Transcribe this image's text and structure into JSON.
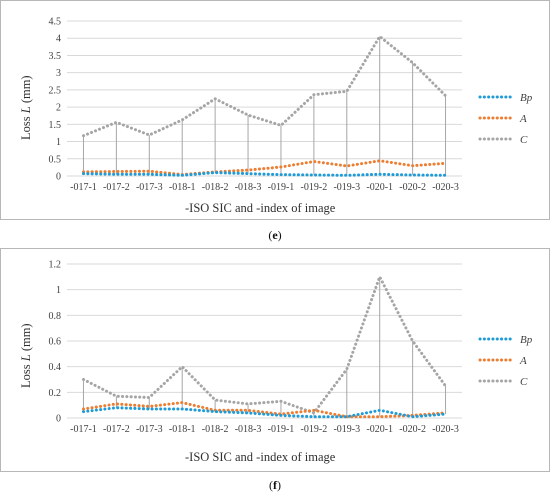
{
  "chart_data": [
    {
      "type": "line",
      "panel_label": "e",
      "categories": [
        "-017-1",
        "-017-2",
        "-017-3",
        "-018-1",
        "-018-2",
        "-018-3",
        "-019-1",
        "-019-2",
        "-019-3",
        "-020-1",
        "-020-2",
        "-020-3"
      ],
      "series": [
        {
          "name": "Bp",
          "color": "#1f9bd7",
          "values": [
            0.07,
            0.05,
            0.05,
            0.02,
            0.1,
            0.07,
            0.04,
            0.03,
            0.02,
            0.05,
            0.03,
            0.02
          ]
        },
        {
          "name": "A",
          "color": "#ed7d31",
          "values": [
            0.12,
            0.13,
            0.14,
            0.04,
            0.12,
            0.17,
            0.26,
            0.42,
            0.29,
            0.44,
            0.3,
            0.37
          ]
        },
        {
          "name": "C",
          "color": "#a5a5a5",
          "values": [
            1.17,
            1.56,
            1.19,
            1.63,
            2.24,
            1.77,
            1.47,
            2.36,
            2.46,
            4.05,
            3.29,
            2.33
          ]
        }
      ],
      "drop_lines": true,
      "xlabel": "-ISO SIC and -index of image",
      "ylabel_main": "Loss ",
      "ylabel_var": "L",
      "ylabel_unit": " (mm)",
      "ylim": [
        0,
        4.5
      ],
      "yticks": [
        "0",
        "0.5",
        "1",
        "1.5",
        "2",
        "2.5",
        "3",
        "3.5",
        "4",
        "4.5"
      ],
      "grid": true,
      "legend_position": "right"
    },
    {
      "type": "line",
      "panel_label": "f",
      "categories": [
        "-017-1",
        "-017-2",
        "-017-3",
        "-018-1",
        "-018-2",
        "-018-3",
        "-019-1",
        "-019-2",
        "-019-3",
        "-020-1",
        "-020-2",
        "-020-3"
      ],
      "series": [
        {
          "name": "Bp",
          "color": "#1f9bd7",
          "values": [
            0.05,
            0.08,
            0.07,
            0.07,
            0.05,
            0.04,
            0.02,
            0.01,
            0.01,
            0.06,
            0.01,
            0.03
          ]
        },
        {
          "name": "A",
          "color": "#ed7d31",
          "values": [
            0.07,
            0.11,
            0.09,
            0.12,
            0.06,
            0.06,
            0.03,
            0.06,
            0.01,
            0.01,
            0.02,
            0.04
          ]
        },
        {
          "name": "C",
          "color": "#a5a5a5",
          "values": [
            0.3,
            0.17,
            0.16,
            0.4,
            0.14,
            0.11,
            0.13,
            0.04,
            0.38,
            1.1,
            0.6,
            0.25
          ]
        }
      ],
      "drop_lines": true,
      "xlabel": "-ISO SIC and -index of image",
      "ylabel_main": "Loss ",
      "ylabel_var": "L",
      "ylabel_unit": " (mm)",
      "ylim": [
        0,
        1.2
      ],
      "yticks": [
        "0",
        "0.2",
        "0.4",
        "0.6",
        "0.8",
        "1",
        "1.2"
      ],
      "grid": true,
      "legend_position": "right"
    }
  ],
  "captions": {
    "e": {
      "open": "(",
      "label": "e",
      "close": ")"
    },
    "f": {
      "open": "(",
      "label": "f",
      "close": ")"
    }
  }
}
